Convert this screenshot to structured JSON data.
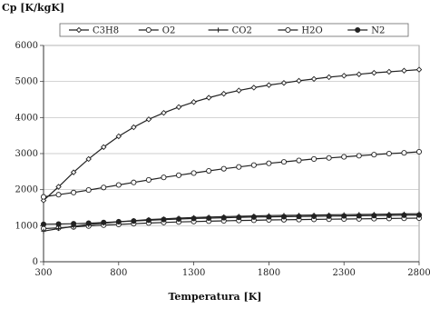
{
  "chart_data": {
    "type": "line",
    "title": "",
    "ylabel": "Cp [K/kgK]",
    "xlabel": "Temperatura [K]",
    "xlim": [
      300,
      2800
    ],
    "ylim": [
      0,
      6000
    ],
    "x_ticks": [
      "300",
      "800",
      "1300",
      "1800",
      "2300",
      "2800"
    ],
    "y_ticks": [
      "0",
      "1000",
      "2000",
      "3000",
      "4000",
      "5000",
      "6000"
    ],
    "grid": "horizontal",
    "legend_position": "top",
    "x": [
      300,
      400,
      500,
      600,
      700,
      800,
      900,
      1000,
      1100,
      1200,
      1300,
      1400,
      1500,
      1600,
      1700,
      1800,
      1900,
      2000,
      2100,
      2200,
      2300,
      2400,
      2500,
      2600,
      2700,
      2800
    ],
    "series": [
      {
        "name": "C3H8",
        "marker": "diamond-open",
        "values": [
          1700,
          2080,
          2480,
          2850,
          3180,
          3480,
          3730,
          3950,
          4130,
          4290,
          4430,
          4550,
          4660,
          4750,
          4830,
          4900,
          4960,
          5020,
          5070,
          5120,
          5160,
          5200,
          5240,
          5270,
          5300,
          5330
        ]
      },
      {
        "name": "O2",
        "marker": "circle-open",
        "values": [
          920,
          940,
          965,
          990,
          1015,
          1035,
          1055,
          1075,
          1090,
          1105,
          1115,
          1125,
          1135,
          1145,
          1150,
          1160,
          1165,
          1170,
          1175,
          1180,
          1185,
          1190,
          1195,
          1200,
          1205,
          1210
        ]
      },
      {
        "name": "CO2",
        "marker": "plus",
        "values": [
          850,
          920,
          980,
          1030,
          1070,
          1110,
          1140,
          1170,
          1190,
          1210,
          1225,
          1240,
          1250,
          1260,
          1270,
          1280,
          1285,
          1290,
          1295,
          1300,
          1305,
          1310,
          1315,
          1320,
          1325,
          1330
        ]
      },
      {
        "name": "H2O",
        "marker": "circle-open",
        "values": [
          1800,
          1860,
          1920,
          1990,
          2060,
          2130,
          2200,
          2270,
          2340,
          2400,
          2460,
          2520,
          2580,
          2630,
          2680,
          2730,
          2770,
          2810,
          2850,
          2880,
          2910,
          2940,
          2970,
          3000,
          3020,
          3050
        ]
      },
      {
        "name": "N2",
        "marker": "circle-filled",
        "values": [
          1040,
          1045,
          1055,
          1070,
          1090,
          1110,
          1130,
          1150,
          1170,
          1185,
          1200,
          1210,
          1220,
          1230,
          1240,
          1245,
          1250,
          1255,
          1260,
          1265,
          1270,
          1275,
          1280,
          1285,
          1290,
          1295
        ]
      }
    ]
  }
}
